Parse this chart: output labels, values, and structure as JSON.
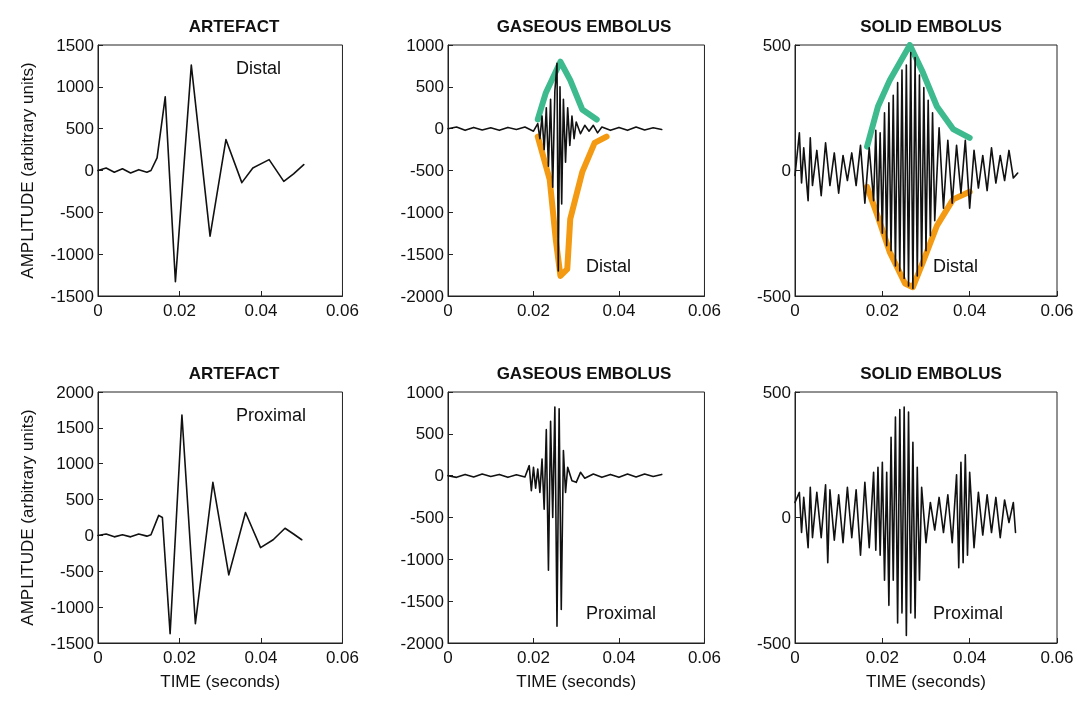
{
  "chart_data": [
    {
      "type": "line",
      "title": "ARTEFACT",
      "ylabel": "AMPLITUDE (arbitrary units)",
      "annotations": [
        "Distal"
      ],
      "xlim": [
        0,
        0.06
      ],
      "xticks": [
        0,
        0.02,
        0.04,
        0.06
      ],
      "ylim": [
        -1500,
        1500
      ],
      "yticks": [
        -1500,
        -1000,
        -500,
        0,
        500,
        1000,
        1500
      ],
      "grid": false,
      "series": [
        {
          "color": "#111111",
          "x": [
            0,
            0.002,
            0.004,
            0.006,
            0.008,
            0.01,
            0.012,
            0.013,
            0.0145,
            0.0165,
            0.019,
            0.0229,
            0.0275,
            0.0314,
            0.0353,
            0.038,
            0.042,
            0.0456,
            0.048,
            0.0505
          ],
          "values": [
            0,
            30,
            -20,
            20,
            -30,
            10,
            -20,
            0,
            150,
            880,
            -1330,
            1260,
            -785,
            370,
            -145,
            30,
            130,
            -130,
            -40,
            70
          ]
        }
      ]
    },
    {
      "type": "line",
      "title": "GASEOUS EMBOLUS",
      "annotations": [
        "Distal"
      ],
      "xlim": [
        0,
        0.06
      ],
      "xticks": [
        0,
        0.02,
        0.04,
        0.06
      ],
      "ylim": [
        -2000,
        1000
      ],
      "yticks": [
        -2000,
        -1500,
        -1000,
        -500,
        0,
        500,
        1000
      ],
      "grid": false,
      "series": [
        {
          "color": "#3dba8e",
          "x": [
            0.021,
            0.0229,
            0.0263,
            0.0286,
            0.0314,
            0.0348
          ],
          "values": [
            110,
            430,
            800,
            580,
            230,
            110
          ]
        },
        {
          "color": "#f39a12",
          "x": [
            0.021,
            0.0238,
            0.0252,
            0.0263,
            0.0279,
            0.0286,
            0.0314,
            0.0343,
            0.0371
          ],
          "values": [
            -95,
            -610,
            -1320,
            -1760,
            -1680,
            -1080,
            -520,
            -170,
            -95
          ]
        },
        {
          "color": "#111111",
          "x": [
            0,
            0.002,
            0.004,
            0.006,
            0.008,
            0.01,
            0.012,
            0.014,
            0.016,
            0.018,
            0.02,
            0.021,
            0.0215,
            0.022,
            0.0225,
            0.023,
            0.0235,
            0.024,
            0.0245,
            0.025,
            0.0255,
            0.0258,
            0.0262,
            0.0266,
            0.027,
            0.0275,
            0.028,
            0.0285,
            0.029,
            0.0295,
            0.03,
            0.031,
            0.032,
            0.033,
            0.034,
            0.035,
            0.036,
            0.038,
            0.04,
            0.042,
            0.044,
            0.046,
            0.048,
            0.05
          ],
          "values": [
            0,
            20,
            -20,
            15,
            -15,
            10,
            -20,
            15,
            -10,
            20,
            -30,
            60,
            -120,
            150,
            -250,
            250,
            -450,
            350,
            -700,
            450,
            780,
            -1700,
            500,
            -900,
            350,
            -400,
            250,
            -200,
            150,
            -120,
            80,
            -60,
            40,
            -30,
            40,
            -50,
            20,
            -20,
            15,
            -20,
            20,
            -15,
            10,
            -10
          ]
        }
      ]
    },
    {
      "type": "line",
      "title": "SOLID EMBOLUS",
      "annotations": [
        "Distal"
      ],
      "xlim": [
        0,
        0.06
      ],
      "xticks": [
        0,
        0.02,
        0.04,
        0.06
      ],
      "ylim": [
        -500,
        500
      ],
      "yticks": [
        -500,
        0,
        500
      ],
      "grid": false,
      "series": [
        {
          "color": "#3dba8e",
          "x": [
            0.0165,
            0.019,
            0.0217,
            0.0263,
            0.0293,
            0.0325,
            0.0362,
            0.04
          ],
          "values": [
            95,
            255,
            360,
            500,
            390,
            255,
            165,
            130
          ]
        },
        {
          "color": "#f39a12",
          "x": [
            0.0165,
            0.019,
            0.0217,
            0.0252,
            0.027,
            0.0293,
            0.0325,
            0.0362,
            0.04
          ],
          "values": [
            -65,
            -185,
            -325,
            -450,
            -465,
            -365,
            -220,
            -115,
            -85
          ]
        },
        {
          "color": "#111111",
          "x": [
            0,
            0.001,
            0.0015,
            0.002,
            0.003,
            0.0035,
            0.004,
            0.005,
            0.006,
            0.007,
            0.008,
            0.009,
            0.01,
            0.011,
            0.012,
            0.013,
            0.014,
            0.015,
            0.016,
            0.017,
            0.018,
            0.0185,
            0.019,
            0.0195,
            0.02,
            0.0205,
            0.021,
            0.0215,
            0.022,
            0.0225,
            0.023,
            0.0235,
            0.024,
            0.0245,
            0.025,
            0.0255,
            0.026,
            0.0265,
            0.027,
            0.0275,
            0.028,
            0.0285,
            0.029,
            0.0295,
            0.03,
            0.0305,
            0.031,
            0.0315,
            0.032,
            0.033,
            0.034,
            0.035,
            0.036,
            0.037,
            0.038,
            0.039,
            0.04,
            0.041,
            0.042,
            0.043,
            0.044,
            0.045,
            0.046,
            0.047,
            0.048,
            0.049,
            0.05,
            0.051
          ],
          "values": [
            -20,
            150,
            -50,
            90,
            -120,
            130,
            -60,
            80,
            -100,
            110,
            -60,
            70,
            -90,
            60,
            -40,
            70,
            -60,
            100,
            -130,
            90,
            -120,
            160,
            -200,
            150,
            -250,
            230,
            -300,
            270,
            -320,
            300,
            -380,
            350,
            -400,
            400,
            -430,
            420,
            -460,
            470,
            -470,
            450,
            -420,
            380,
            -380,
            330,
            -320,
            280,
            -260,
            230,
            -200,
            170,
            -150,
            120,
            -130,
            100,
            -90,
            120,
            -150,
            80,
            -70,
            60,
            -80,
            90,
            -50,
            60,
            -40,
            80,
            -30,
            -10
          ]
        }
      ]
    },
    {
      "type": "line",
      "title": "ARTEFACT",
      "xlabel": "TIME (seconds)",
      "ylabel": "AMPLITUDE (arbitrary units)",
      "annotations": [
        "Proximal"
      ],
      "xlim": [
        0,
        0.06
      ],
      "xticks": [
        0,
        0.02,
        0.04,
        0.06
      ],
      "ylim": [
        -1500,
        2000
      ],
      "yticks": [
        -1500,
        -1000,
        -500,
        0,
        500,
        1000,
        1500,
        2000
      ],
      "grid": false,
      "series": [
        {
          "color": "#111111",
          "x": [
            0,
            0.002,
            0.004,
            0.006,
            0.008,
            0.01,
            0.012,
            0.013,
            0.0149,
            0.0158,
            0.0177,
            0.0206,
            0.0239,
            0.0282,
            0.0321,
            0.0362,
            0.0399,
            0.043,
            0.0459,
            0.048,
            0.05
          ],
          "values": [
            0,
            20,
            -20,
            10,
            -20,
            20,
            -10,
            10,
            280,
            250,
            -1370,
            1680,
            -1230,
            740,
            -550,
            320,
            -170,
            -60,
            100,
            20,
            -60
          ]
        }
      ]
    },
    {
      "type": "line",
      "title": "GASEOUS EMBOLUS",
      "xlabel": "TIME (seconds)",
      "annotations": [
        "Proximal"
      ],
      "xlim": [
        0,
        0.06
      ],
      "xticks": [
        0,
        0.02,
        0.04,
        0.06
      ],
      "ylim": [
        -2000,
        1000
      ],
      "yticks": [
        -2000,
        -1500,
        -1000,
        -500,
        0,
        500,
        1000
      ],
      "grid": false,
      "series": [
        {
          "color": "#111111",
          "x": [
            0,
            0.002,
            0.004,
            0.006,
            0.008,
            0.01,
            0.012,
            0.014,
            0.016,
            0.018,
            0.019,
            0.0195,
            0.02,
            0.0205,
            0.021,
            0.0215,
            0.022,
            0.0225,
            0.023,
            0.0235,
            0.024,
            0.0245,
            0.025,
            0.0255,
            0.026,
            0.0265,
            0.027,
            0.0275,
            0.028,
            0.029,
            0.03,
            0.031,
            0.032,
            0.034,
            0.036,
            0.038,
            0.04,
            0.042,
            0.044,
            0.046,
            0.048,
            0.05
          ],
          "values": [
            0,
            -20,
            15,
            -15,
            20,
            -10,
            15,
            -20,
            10,
            -15,
            120,
            -180,
            100,
            -150,
            80,
            -200,
            200,
            -400,
            550,
            -1130,
            650,
            -500,
            820,
            -1800,
            800,
            -1600,
            300,
            -200,
            100,
            -60,
            -80,
            40,
            -30,
            20,
            -20,
            15,
            -20,
            20,
            -15,
            20,
            -10,
            15
          ]
        }
      ]
    },
    {
      "type": "line",
      "title": "SOLID EMBOLUS",
      "xlabel": "TIME (seconds)",
      "annotations": [
        "Proximal"
      ],
      "xlim": [
        0,
        0.06
      ],
      "xticks": [
        0,
        0.02,
        0.04,
        0.06
      ],
      "ylim": [
        -500,
        500
      ],
      "yticks": [
        -500,
        0,
        500
      ],
      "grid": false,
      "series": [
        {
          "color": "#111111",
          "x": [
            0,
            0.001,
            0.0015,
            0.002,
            0.003,
            0.0035,
            0.004,
            0.005,
            0.006,
            0.007,
            0.0075,
            0.008,
            0.009,
            0.01,
            0.011,
            0.012,
            0.013,
            0.014,
            0.015,
            0.016,
            0.017,
            0.018,
            0.0185,
            0.019,
            0.0195,
            0.02,
            0.0205,
            0.021,
            0.0215,
            0.022,
            0.0225,
            0.023,
            0.0235,
            0.024,
            0.0245,
            0.025,
            0.0255,
            0.026,
            0.0265,
            0.027,
            0.0275,
            0.028,
            0.0285,
            0.029,
            0.03,
            0.031,
            0.032,
            0.033,
            0.034,
            0.035,
            0.036,
            0.037,
            0.0375,
            0.038,
            0.0385,
            0.039,
            0.0395,
            0.04,
            0.041,
            0.042,
            0.043,
            0.044,
            0.045,
            0.046,
            0.047,
            0.048,
            0.049,
            0.05,
            0.0505
          ],
          "values": [
            60,
            100,
            -60,
            80,
            -120,
            120,
            -80,
            100,
            -80,
            130,
            -180,
            110,
            -90,
            90,
            -100,
            120,
            -80,
            110,
            -150,
            140,
            -120,
            180,
            -130,
            200,
            -150,
            220,
            -250,
            180,
            -350,
            320,
            -250,
            400,
            -420,
            430,
            -380,
            440,
            -470,
            420,
            -380,
            300,
            -400,
            200,
            -250,
            120,
            -100,
            60,
            -50,
            80,
            -60,
            90,
            -100,
            170,
            -200,
            220,
            -180,
            250,
            -150,
            180,
            -120,
            100,
            -70,
            90,
            -60,
            80,
            -80,
            70,
            -20,
            60,
            -60
          ]
        }
      ]
    }
  ]
}
